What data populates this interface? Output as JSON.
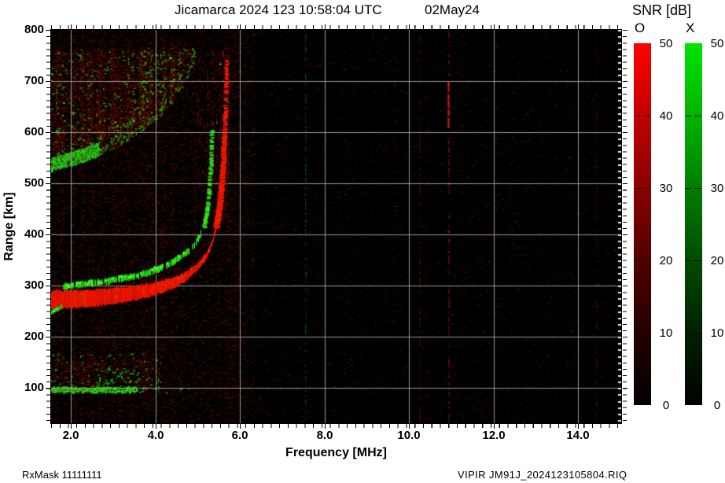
{
  "title": {
    "main": "Jicamarca 2024 123 10:58:04 UTC",
    "date": "02May24"
  },
  "footer": {
    "left": "RxMask 11111111",
    "right": "VIPIR  JM91J_2024123105804.RIQ"
  },
  "axes": {
    "x": {
      "label": "Frequency [MHz]",
      "unit": "MHz",
      "min": 1.53,
      "max": 15.02,
      "major_tick_values": [
        2,
        4,
        6,
        8,
        10,
        12,
        14
      ],
      "major_tick_labels": [
        "2.0",
        "4.0",
        "6.0",
        "8.0",
        "10.0",
        "12.0",
        "14.0"
      ],
      "minor_tick_step": 0.2
    },
    "y": {
      "label": "Range [km]",
      "unit": "km",
      "min": 31,
      "max": 800,
      "major_tick_values": [
        100,
        200,
        300,
        400,
        500,
        600,
        700,
        800
      ],
      "major_tick_labels": [
        "100",
        "200",
        "300",
        "400",
        "500",
        "600",
        "700",
        "800"
      ],
      "minor_tick_step": 12.5
    },
    "grid_color": "#a6a6a6",
    "frame_color": "#000000",
    "plot_bg": "#000000"
  },
  "legend": {
    "title": "SNR [dB]",
    "min": 0,
    "max": 50,
    "tick_values": [
      50,
      40,
      30,
      20,
      10,
      0
    ],
    "tick_labels": [
      "50",
      "40",
      "30",
      "20",
      "10",
      "0"
    ],
    "bars": [
      {
        "label": "O",
        "color": "#ff0000",
        "polarization": "ordinary"
      },
      {
        "label": "X",
        "color": "#00e400",
        "polarization": "extraordinary"
      }
    ]
  },
  "chart_data": {
    "type": "heatmap",
    "title": "Jicamarca ionogram, SNR [dB] vs frequency and virtual range",
    "xlabel": "Frequency [MHz]",
    "ylabel": "Range [km]",
    "xlim": [
      1.53,
      15.02
    ],
    "ylim": [
      31,
      800
    ],
    "snr_scale_dB": [
      0,
      50
    ],
    "grid": true,
    "o_trace": {
      "mode": "O",
      "color": "#e10600",
      "f_MHz": [
        1.53,
        2.0,
        2.5,
        3.0,
        3.5,
        4.0,
        4.4,
        4.7,
        5.0,
        5.2,
        5.35,
        5.45,
        5.53,
        5.59,
        5.63,
        5.66,
        5.68,
        5.69
      ],
      "range_km": [
        255,
        256,
        259,
        264,
        271,
        281,
        294,
        308,
        330,
        352,
        382,
        415,
        460,
        515,
        575,
        635,
        700,
        745
      ],
      "thickness_km": [
        35,
        35,
        33,
        31,
        29,
        26,
        22,
        18,
        15,
        13,
        11,
        10,
        9,
        9,
        9,
        9,
        9,
        9
      ],
      "dotted_above_km": 585,
      "asymptote_MHz": 5.69
    },
    "x_trace": {
      "mode": "X",
      "color": "#10d500",
      "tip_f_MHz": [
        1.53,
        1.78
      ],
      "tip_range_km": [
        246,
        256
      ],
      "f_MHz": [
        1.8,
        2.2,
        2.6,
        3.0,
        3.4,
        3.8,
        4.1,
        4.4,
        4.7,
        4.9,
        5.05,
        5.15,
        5.22,
        5.27,
        5.3,
        5.32,
        5.33
      ],
      "range_km": [
        292,
        296,
        300,
        305,
        311,
        319,
        328,
        340,
        356,
        372,
        392,
        415,
        445,
        480,
        520,
        560,
        605
      ],
      "thickness_km": 12,
      "dotted_above_km": 465,
      "asymptote_MHz": 5.33
    },
    "spread_f_region": {
      "boundary_f_MHz": [
        1.53,
        2.0,
        2.5,
        3.0,
        3.5,
        4.0,
        4.3,
        4.6,
        4.8,
        4.95
      ],
      "boundary_range_km": [
        525,
        536,
        550,
        568,
        592,
        625,
        650,
        685,
        715,
        750
      ],
      "top_km": 762,
      "green_band_max_f_MHz": 2.65,
      "green_band_height_km": 26,
      "streak_f_MHz": [
        4.95,
        5.75
      ]
    },
    "e_region": {
      "band_range_km": [
        92,
        103
      ],
      "band_f_MHz": [
        1.53,
        3.55
      ],
      "sparse_band_max_f_MHz": 4.8,
      "speckle_range_km": [
        103,
        168
      ],
      "speckle_f_MHz": [
        1.53,
        4.1
      ]
    },
    "rfi_lines": [
      {
        "f_MHz": 7.54,
        "color_rgb": [
          14,
          80,
          14
        ],
        "style": "dotted"
      },
      {
        "f_MHz": 10.24,
        "color_rgb": [
          78,
          14,
          7
        ],
        "style": "dotted"
      },
      {
        "f_MHz": 10.93,
        "color_rgb": [
          140,
          22,
          9
        ],
        "style": "dotted",
        "bright_range_km": [
          610,
          700
        ]
      },
      {
        "f_MHz": 14.42,
        "color_rgb": [
          62,
          12,
          6
        ],
        "style": "dotted"
      }
    ],
    "noise": {
      "bg": "#000000",
      "left_dense_max_f_MHz": 6.3
    }
  }
}
